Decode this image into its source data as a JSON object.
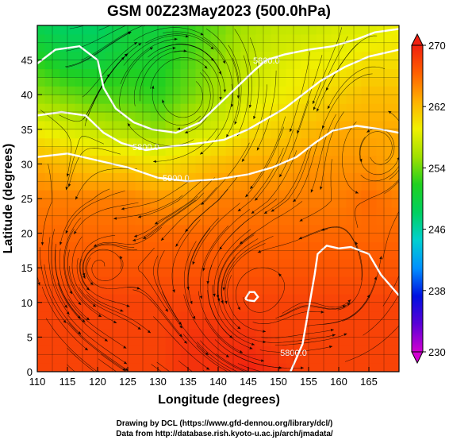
{
  "chart_data": {
    "type": "heatmap",
    "title": "GSM 00Z23May2023 (500.0hPa)",
    "xlabel": "Longitude (degrees)",
    "ylabel": "Latitude (degrees)",
    "xlim": [
      110,
      170
    ],
    "ylim": [
      0,
      50
    ],
    "xticks": [
      "110",
      "115",
      "120",
      "125",
      "130",
      "135",
      "140",
      "145",
      "150",
      "155",
      "160",
      "165"
    ],
    "yticks": [
      "0",
      "5",
      "10",
      "15",
      "20",
      "25",
      "30",
      "35",
      "40",
      "45"
    ],
    "colorbar": {
      "min": 230,
      "max": 270,
      "ticks": [
        "230",
        "238",
        "246",
        "254",
        "262",
        "270"
      ],
      "colors": [
        "#d100d1",
        "#5a00d6",
        "#0010e0",
        "#0090ff",
        "#00d0d0",
        "#00d060",
        "#20d020",
        "#a0e000",
        "#f0f000",
        "#ffb000",
        "#ff6000",
        "#f02010"
      ]
    },
    "temperature_field": [
      [
        249,
        248,
        248,
        250,
        250,
        252,
        254,
        256,
        257,
        257,
        258,
        258,
        259
      ],
      [
        252,
        250,
        250,
        251,
        251,
        253,
        255,
        257,
        258,
        259,
        259,
        260,
        260
      ],
      [
        255,
        254,
        253,
        253,
        252,
        254,
        256,
        258,
        259,
        260,
        261,
        262,
        262
      ],
      [
        259,
        258,
        257,
        256,
        255,
        257,
        258,
        260,
        261,
        262,
        263,
        263,
        263
      ],
      [
        263,
        262,
        261,
        261,
        260,
        261,
        262,
        263,
        263,
        264,
        264,
        264,
        263
      ],
      [
        265,
        265,
        265,
        265,
        264,
        264,
        265,
        265,
        265,
        265,
        265,
        266,
        265
      ],
      [
        266,
        266,
        266,
        266,
        266,
        266,
        266,
        266,
        266,
        266,
        266,
        266,
        266
      ],
      [
        267,
        267,
        267,
        267,
        267,
        267,
        267,
        267,
        267,
        267,
        267,
        267,
        267
      ],
      [
        268,
        268,
        268,
        268,
        268,
        268,
        268,
        268,
        268,
        268,
        268,
        268,
        268
      ],
      [
        268,
        268,
        268,
        268,
        268,
        269,
        269,
        269,
        268,
        268,
        268,
        268,
        268
      ],
      [
        268,
        268,
        268,
        268,
        268,
        269,
        269,
        270,
        269,
        268,
        268,
        268,
        268
      ]
    ],
    "contour_labels": [
      "5800.0",
      "5800.0",
      "5900.0",
      "5800.0",
      "5900.0"
    ],
    "grid": true,
    "colorbar_position": "right"
  },
  "credits": {
    "line1": "Drawing by DCL (https://www.gfd-dennou.org/library/dcl/)",
    "line2": "Data from http://database.rish.kyoto-u.ac.jp/arch/jmadata/"
  }
}
